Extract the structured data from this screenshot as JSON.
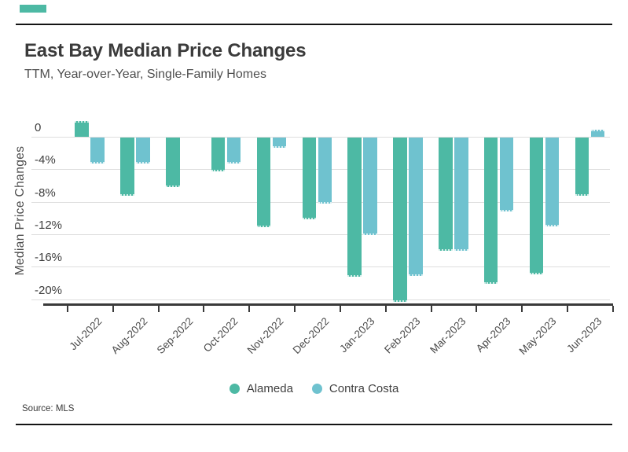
{
  "brand": {
    "accent_color": "#4DB9A4"
  },
  "header": {
    "title": "East Bay Median Price Changes",
    "subtitle": "TTM, Year-over-Year, Single-Family Homes"
  },
  "chart_data": {
    "type": "bar",
    "title": "East Bay Median Price Changes",
    "subtitle": "TTM, Year-over-Year, Single-Family Homes",
    "categories": [
      "Jul-2022",
      "Aug-2022",
      "Sep-2022",
      "Oct-2022",
      "Nov-2022",
      "Dec-2022",
      "Jan-2023",
      "Feb-2023",
      "Mar-2023",
      "Apr-2023",
      "May-2023",
      "Jun-2023"
    ],
    "series": [
      {
        "name": "Alameda",
        "color": "#4DB9A4",
        "values": [
          1.9,
          -7.2,
          -6.1,
          -4.2,
          -11.1,
          -10.1,
          -17.2,
          -20.3,
          -14.0,
          -18.1,
          -16.9,
          -7.2
        ]
      },
      {
        "name": "Contra Costa",
        "color": "#6FC2CF",
        "values": [
          -3.2,
          -3.2,
          0,
          -3.2,
          -1.3,
          -8.2,
          -12.1,
          -17.1,
          -14.0,
          -9.1,
          -11.0,
          0.9
        ]
      }
    ],
    "xlabel": "",
    "ylabel": "Median Price Changes",
    "yticks": [
      0,
      -4,
      -8,
      -12,
      -16,
      -20
    ],
    "ytick_labels": [
      "0",
      "-4%",
      "-8%",
      "-12%",
      "-16%",
      "-20%"
    ],
    "ylim": [
      -21,
      3
    ],
    "grid": true,
    "legend_position": "bottom"
  },
  "legend": {
    "items": [
      {
        "label": "Alameda",
        "color": "#4DB9A4"
      },
      {
        "label": "Contra Costa",
        "color": "#6FC2CF"
      }
    ]
  },
  "footer": {
    "source": "Source: MLS"
  }
}
